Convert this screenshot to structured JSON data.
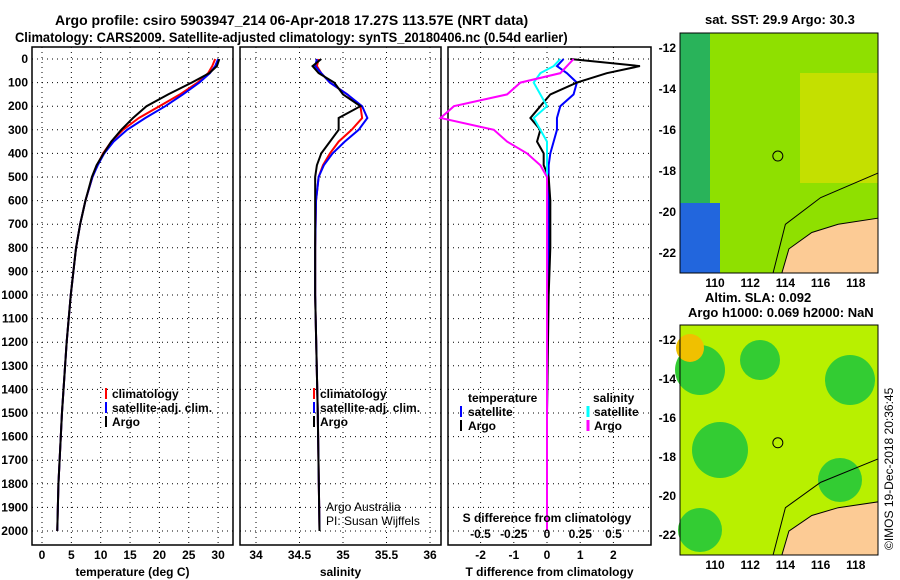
{
  "title": {
    "line1": "Argo profile: csiro 5903947_214 06-Apr-2018 17.27S 113.57E (NRT data)",
    "line2": "Climatology: CARS2009. Satellite-adjusted climatology: synTS_20180406.nc (0.54d earlier)"
  },
  "credit": {
    "line1": "Argo Australia",
    "line2": "PI: Susan Wijffels"
  },
  "stamp": "©IMOS 19-Dec-2018 20:36:45",
  "colors": {
    "climatology": "#ff0000",
    "satellite": "#0000ff",
    "argo": "#000000",
    "sal_satellite": "#00ffff",
    "sal_argo": "#ff00ff",
    "land": "#fccb95"
  },
  "chart_data": [
    {
      "type": "line",
      "xlabel": "temperature (deg C)",
      "ylabel": "depth",
      "xlim": [
        -2,
        31
      ],
      "ylim": [
        2080,
        -30
      ],
      "xticks": [
        0,
        5,
        10,
        15,
        20,
        25,
        30
      ],
      "yticks": [
        0,
        100,
        200,
        300,
        400,
        500,
        600,
        700,
        800,
        900,
        1000,
        1100,
        1200,
        1300,
        1400,
        1500,
        1600,
        1700,
        1800,
        1900,
        2000
      ],
      "legend": [
        "climatology",
        "satellite-adj. clim.",
        "Argo"
      ],
      "depth": [
        0,
        30,
        60,
        100,
        150,
        200,
        250,
        300,
        350,
        400,
        450,
        500,
        600,
        700,
        800,
        1000,
        1200,
        1500,
        1800,
        2000
      ],
      "series": [
        {
          "name": "climatology",
          "values": [
            29.5,
            29,
            28.3,
            26.5,
            23.5,
            20,
            16.5,
            13.8,
            11.8,
            10.4,
            9.4,
            8.6,
            7.4,
            6.5,
            5.8,
            4.9,
            4.2,
            3.4,
            2.8,
            2.6
          ]
        },
        {
          "name": "satellite-adj. clim.",
          "values": [
            30,
            29.5,
            28.6,
            26.8,
            24,
            21,
            17.6,
            14.5,
            12.2,
            10.6,
            9.5,
            8.6,
            7.4,
            6.5,
            5.8,
            4.9,
            4.2,
            3.4,
            2.8,
            2.6
          ]
        },
        {
          "name": "Argo",
          "values": [
            30.2,
            29.8,
            28.5,
            25.5,
            21.5,
            17.8,
            15.5,
            13.5,
            11.8,
            10.5,
            9.3,
            8.5,
            7.4,
            6.5,
            5.8,
            4.9,
            4.2,
            3.4,
            2.8,
            2.6
          ]
        }
      ]
    },
    {
      "type": "line",
      "xlabel": "salinity",
      "xlim": [
        33.8,
        36.1
      ],
      "ylim": [
        2080,
        -30
      ],
      "xticks": [
        34,
        34.5,
        35,
        35.5,
        36
      ],
      "legend": [
        "climatology",
        "satellite-adj. clim.",
        "Argo"
      ],
      "depth": [
        0,
        30,
        60,
        100,
        150,
        200,
        250,
        300,
        350,
        400,
        450,
        500,
        600,
        800,
        1000,
        1500,
        2000
      ],
      "series": [
        {
          "name": "climatology",
          "values": [
            34.72,
            34.7,
            34.75,
            34.85,
            35.05,
            35.2,
            35.22,
            35.1,
            34.95,
            34.85,
            34.77,
            34.72,
            34.69,
            34.68,
            34.68,
            34.71,
            34.73
          ]
        },
        {
          "name": "satellite-adj. clim.",
          "values": [
            34.7,
            34.68,
            34.75,
            34.85,
            35.05,
            35.22,
            35.28,
            35.18,
            35.02,
            34.88,
            34.78,
            34.72,
            34.69,
            34.68,
            34.68,
            34.71,
            34.73
          ]
        },
        {
          "name": "Argo",
          "values": [
            34.75,
            34.65,
            34.72,
            34.9,
            35.0,
            35.2,
            34.95,
            34.95,
            34.85,
            34.75,
            34.7,
            34.68,
            34.68,
            34.68,
            34.68,
            34.71,
            34.73
          ]
        }
      ]
    },
    {
      "type": "line",
      "xlabel": "T difference from climatology",
      "xlabel2": "S difference from climatology",
      "xlim": [
        -3,
        3
      ],
      "ylim": [
        2080,
        -30
      ],
      "xticks": [
        -2,
        -1,
        0,
        1,
        2
      ],
      "xticks2": [
        -0.5,
        -0.25,
        0,
        0.25,
        0.5
      ],
      "legend_t": {
        "heading": "temperature",
        "items": [
          "satellite",
          "Argo"
        ]
      },
      "legend_s": {
        "heading": "salinity",
        "items": [
          "satellite",
          "Argo"
        ]
      },
      "depth": [
        0,
        30,
        60,
        100,
        150,
        200,
        250,
        300,
        350,
        400,
        450,
        500,
        600,
        800,
        1000,
        1500,
        2000
      ],
      "series": [
        {
          "name": "T satellite",
          "values": [
            0.5,
            0.3,
            0.6,
            0.9,
            0.8,
            0.4,
            0.3,
            0.3,
            0.2,
            0.1,
            0.05,
            0.05,
            0.05,
            0.05,
            0.02,
            0,
            0
          ]
        },
        {
          "name": "T Argo",
          "values": [
            0.7,
            2.8,
            1.8,
            0.9,
            0.1,
            -0.2,
            -0.5,
            -0.2,
            -0.3,
            -0.1,
            -0.1,
            0.05,
            0.1,
            0.1,
            0.05,
            0,
            0
          ]
        },
        {
          "name": "S satellite",
          "values": [
            0.1,
            0.05,
            -0.05,
            -0.1,
            -0.05,
            0,
            -0.1,
            -0.05,
            0,
            0,
            0,
            0,
            0,
            0,
            0,
            0,
            0
          ]
        },
        {
          "name": "S Argo",
          "values": [
            0.2,
            0.15,
            0.1,
            -0.2,
            -0.3,
            -0.7,
            -0.8,
            -0.4,
            -0.3,
            -0.15,
            -0.05,
            0,
            0,
            0,
            0,
            0,
            0
          ]
        }
      ]
    },
    {
      "type": "heatmap",
      "title": "sat. SST: 29.9 Argo: 30.3",
      "xlim": [
        108.3,
        119
      ],
      "ylim": [
        -23.3,
        -11.4
      ],
      "xticks": [
        110,
        112,
        114,
        116,
        118
      ],
      "yticks": [
        -12,
        -14,
        -16,
        -18,
        -20,
        -22
      ],
      "marker": [
        113.57,
        -17.27
      ]
    },
    {
      "type": "heatmap",
      "title": "Altim. SLA: 0.092",
      "subtitle": "Argo h1000: 0.069 h2000: NaN",
      "xlim": [
        108.3,
        119
      ],
      "ylim": [
        -23.3,
        -11.4
      ],
      "xticks": [
        110,
        112,
        114,
        116,
        118
      ],
      "yticks": [
        -12,
        -14,
        -16,
        -18,
        -20,
        -22
      ],
      "marker": [
        113.57,
        -17.27
      ]
    }
  ]
}
